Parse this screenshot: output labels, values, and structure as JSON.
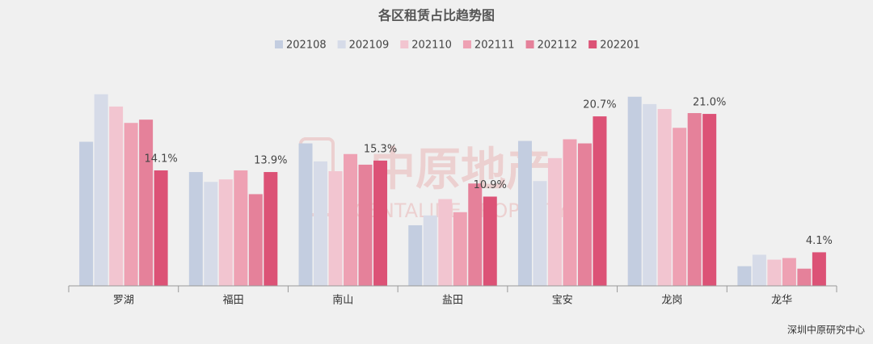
{
  "chart_data": {
    "type": "bar",
    "title": "各区租赁占比趋势图",
    "categories": [
      "罗湖",
      "福田",
      "南山",
      "盐田",
      "宝安",
      "龙岗",
      "龙华"
    ],
    "series": [
      {
        "name": "202108",
        "color": "#c3cde0",
        "values": [
          17.6,
          13.9,
          17.4,
          7.4,
          17.7,
          23.1,
          2.4
        ]
      },
      {
        "name": "202109",
        "color": "#d6dbe8",
        "values": [
          23.4,
          12.7,
          15.2,
          8.6,
          12.8,
          22.2,
          3.8
        ]
      },
      {
        "name": "202110",
        "color": "#f2c5d0",
        "values": [
          21.9,
          13.0,
          14.0,
          10.6,
          15.6,
          21.6,
          3.2
        ]
      },
      {
        "name": "202111",
        "color": "#eea1b3",
        "values": [
          19.9,
          14.1,
          16.1,
          9.0,
          17.9,
          19.3,
          3.4
        ]
      },
      {
        "name": "202112",
        "color": "#e5819a",
        "values": [
          20.3,
          11.2,
          14.8,
          12.5,
          17.4,
          21.1,
          2.1
        ]
      },
      {
        "name": "202201",
        "color": "#dc5276",
        "values": [
          14.1,
          13.9,
          15.3,
          10.9,
          20.7,
          21.0,
          4.1
        ],
        "value_labels": [
          "14.1%",
          "13.9%",
          "15.3%",
          "10.9%",
          "20.7%",
          "21.0%",
          "4.1%"
        ]
      }
    ],
    "watermark": {
      "cn": "中原地产",
      "en": "CENTALINE PROPERTY"
    },
    "source": "深圳中原研究中心"
  }
}
